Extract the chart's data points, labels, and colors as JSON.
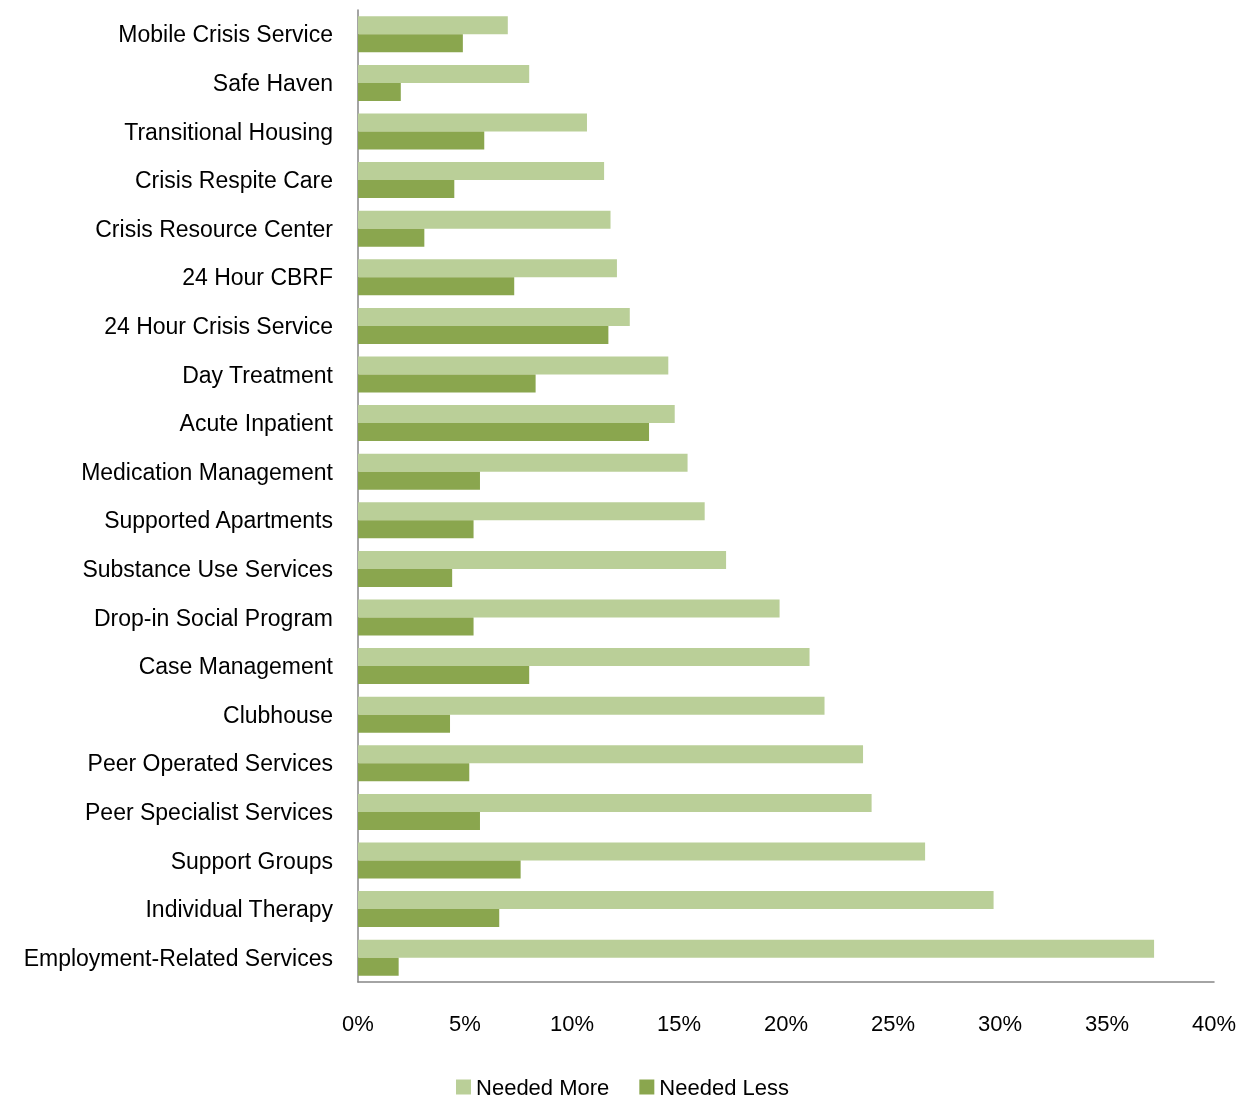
{
  "chart_data": {
    "type": "bar",
    "orientation": "horizontal",
    "categories": [
      "Mobile Crisis Service",
      "Safe Haven",
      "Transitional Housing",
      "Crisis Respite Care",
      "Crisis Resource Center",
      "24 Hour CBRF",
      "24 Hour Crisis Service",
      "Day Treatment",
      "Acute Inpatient",
      "Medication Management",
      "Supported Apartments",
      "Substance Use Services",
      "Drop-in Social Program",
      "Case Management",
      "Clubhouse",
      "Peer Operated Services",
      "Peer Specialist Services",
      "Support Groups",
      "Individual Therapy",
      "Employment-Related Services"
    ],
    "series": [
      {
        "name": "Needed More",
        "color": "#bacf98",
        "values": [
          7.0,
          8.0,
          10.7,
          11.5,
          11.8,
          12.1,
          12.7,
          14.5,
          14.8,
          15.4,
          16.2,
          17.2,
          19.7,
          21.1,
          21.8,
          23.6,
          24.0,
          26.5,
          29.7,
          37.2
        ]
      },
      {
        "name": "Needed Less",
        "color": "#8aa64e",
        "values": [
          4.9,
          2.0,
          5.9,
          4.5,
          3.1,
          7.3,
          11.7,
          8.3,
          13.6,
          5.7,
          5.4,
          4.4,
          5.4,
          8.0,
          4.3,
          5.2,
          5.7,
          7.6,
          6.6,
          1.9
        ]
      }
    ],
    "xlim": [
      0,
      40
    ],
    "xticks": [
      {
        "value": 0,
        "label": "0%"
      },
      {
        "value": 5,
        "label": "5%"
      },
      {
        "value": 10,
        "label": "10%"
      },
      {
        "value": 15,
        "label": "15%"
      },
      {
        "value": 20,
        "label": "20%"
      },
      {
        "value": 25,
        "label": "25%"
      },
      {
        "value": 30,
        "label": "30%"
      },
      {
        "value": 35,
        "label": "35%"
      },
      {
        "value": 40,
        "label": "40%"
      }
    ],
    "grid": false,
    "legend": "bottom"
  }
}
